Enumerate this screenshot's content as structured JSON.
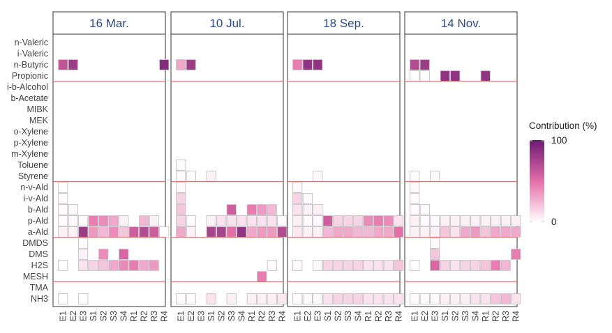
{
  "chart_data": {
    "type": "heatmap",
    "facets": [
      "16 Mar.",
      "10 Jul.",
      "18 Sep.",
      "14 Nov."
    ],
    "x_categories": [
      "E1",
      "E2",
      "E3",
      "S1",
      "S2",
      "S3",
      "S4",
      "R1",
      "R2",
      "R3",
      "R4"
    ],
    "y_categories": [
      "n-Valeric",
      "i-Valeric",
      "n-Butyric",
      "Propionic",
      "i-b-Alcohol",
      "b-Acetate",
      "MIBK",
      "MEK",
      "o-Xylene",
      "p-Xylene",
      "m-Xylene",
      "Toluene",
      "Styrene",
      "n-v-Ald",
      "i-v-Ald",
      "b-Ald",
      "p-Ald",
      "a-Ald",
      "DMDS",
      "DMS",
      "H2S",
      "MESH",
      "TMA",
      "NH3"
    ],
    "y_groups": [
      [
        "n-Valeric",
        "i-Valeric",
        "n-Butyric",
        "Propionic"
      ],
      [
        "i-b-Alcohol",
        "b-Acetate",
        "MIBK",
        "MEK",
        "o-Xylene",
        "p-Xylene",
        "m-Xylene",
        "Toluene",
        "Styrene"
      ],
      [
        "n-v-Ald",
        "i-v-Ald",
        "b-Ald",
        "p-Ald",
        "a-Ald"
      ],
      [
        "DMDS",
        "DMS",
        "H2S",
        "MESH"
      ],
      [
        "TMA",
        "NH3"
      ]
    ],
    "legend": {
      "title": "Contribution (%)",
      "min": 0,
      "max": 100,
      "ticks": [
        0,
        100
      ],
      "low_color": "#ffffff",
      "mid_color": "#e56ea8",
      "high_color": "#6b1a74"
    },
    "colors": {
      "facet_border": "#333333",
      "group_line": "#e07070",
      "cell_border": "#c2c2c2",
      "title_text": "#2a4a8a"
    },
    "values": {
      "16 Mar.": {
        "n-Butyric": {
          "E1": 65,
          "E2": 80,
          "R4": 90
        },
        "n-v-Ald": {
          "E1": 0
        },
        "i-v-Ald": {
          "E1": 2
        },
        "b-Ald": {
          "E1": 2,
          "E2": 2
        },
        "p-Ald": {
          "E1": 2,
          "E2": 2,
          "E3": 2,
          "S1": 45,
          "S2": 40,
          "S3": 30,
          "S4": 5,
          "R2": 25,
          "R3": 5
        },
        "a-Ald": {
          "E1": 5,
          "E2": 5,
          "E3": 80,
          "S1": 35,
          "S2": 25,
          "S3": 40,
          "S4": 20,
          "R1": 60,
          "R2": 70,
          "R3": 60,
          "R4": 0
        },
        "DMDS": {
          "E3": 2
        },
        "DMS": {
          "E3": 5,
          "S2": 40,
          "S4": 55
        },
        "H2S": {
          "E1": 0,
          "E3": 10,
          "S1": 15,
          "S2": 20,
          "S3": 30,
          "S4": 40,
          "R1": 45,
          "R2": 30,
          "R3": 35
        },
        "NH3": {
          "E1": 0,
          "E3": 0
        }
      },
      "10 Jul.": {
        "n-Butyric": {
          "E1": 30,
          "E2": 80
        },
        "Toluene": {
          "E1": 2
        },
        "Styrene": {
          "E1": 2,
          "E2": 2,
          "S1": 5
        },
        "n-v-Ald": {
          "E1": 2
        },
        "i-v-Ald": {
          "E1": 15
        },
        "b-Ald": {
          "E1": 20,
          "S3": 60,
          "R1": 45,
          "R2": 35,
          "R3": 25
        },
        "p-Ald": {
          "E1": 15,
          "E2": 2,
          "S1": 5,
          "S2": 10,
          "S3": 10,
          "S4": 10,
          "R1": 10,
          "R2": 10,
          "R3": 10,
          "R4": 2
        },
        "a-Ald": {
          "E1": 30,
          "E2": 5,
          "S1": 75,
          "S2": 75,
          "S3": 50,
          "S4": 85,
          "R1": 30,
          "R2": 35,
          "R3": 35,
          "R4": 70
        },
        "H2S": {
          "R3": 2
        },
        "MESH": {
          "R2": 45
        },
        "NH3": {
          "E1": 2,
          "E2": 2,
          "S1": 10,
          "S3": 5,
          "R1": 5,
          "R2": 5,
          "R3": 5,
          "R4": 8
        }
      },
      "18 Sep.": {
        "n-Butyric": {
          "E1": 45,
          "E2": 85,
          "E3": 85
        },
        "Styrene": {
          "E3": 2
        },
        "n-v-Ald": {
          "E1": 2
        },
        "i-v-Ald": {
          "E1": 15,
          "E2": 2
        },
        "b-Ald": {
          "E1": 10,
          "E2": 5,
          "E3": 5
        },
        "p-Ald": {
          "E1": 5,
          "E2": 2,
          "E3": 2,
          "S1": 60,
          "S2": 15,
          "S3": 15,
          "S4": 15,
          "R1": 40,
          "R2": 45,
          "R3": 40,
          "R4": 10
        },
        "a-Ald": {
          "E1": 8,
          "E2": 5,
          "E3": 5,
          "S1": 25,
          "S2": 30,
          "S3": 30,
          "S4": 25,
          "R1": 25,
          "R2": 30,
          "R3": 30,
          "R4": 50
        },
        "H2S": {
          "E1": 2,
          "E3": 2,
          "S1": 15,
          "S2": 15,
          "S3": 15,
          "S4": 15,
          "R1": 10,
          "R2": 10,
          "R3": 10,
          "R4": 20
        },
        "NH3": {
          "E1": 2,
          "E2": 2,
          "E3": 2,
          "S1": 10,
          "S2": 15,
          "S3": 15,
          "S4": 15,
          "R1": 10,
          "R2": 10,
          "R3": 10,
          "R4": 10
        }
      },
      "14 Nov.": {
        "n-Butyric": {
          "E1": 70,
          "E2": 80
        },
        "Propionic": {
          "E1": 0,
          "E2": 0,
          "S1": 85,
          "S2": 85,
          "R1": 85
        },
        "Styrene": {
          "E1": 2,
          "E3": 2
        },
        "n-v-Ald": {
          "E1": 2
        },
        "i-v-Ald": {
          "E1": 2
        },
        "b-Ald": {
          "E1": 2,
          "E2": 2
        },
        "p-Ald": {
          "E1": 5,
          "E2": 2,
          "E3": 2,
          "S1": 5,
          "S2": 5,
          "S3": 5,
          "S4": 5,
          "R1": 5,
          "R2": 5,
          "R3": 5,
          "R4": 5
        },
        "a-Ald": {
          "E1": 5,
          "E2": 5,
          "E3": 5,
          "S1": 20,
          "S2": 10,
          "S3": 30,
          "S4": 35,
          "R1": 20,
          "R2": 30,
          "R3": 30,
          "R4": 30
        },
        "DMDS": {
          "E3": 2
        },
        "DMS": {
          "E3": 20,
          "R4": 45
        },
        "H2S": {
          "E1": 0,
          "E3": 55,
          "S1": 15,
          "S2": 10,
          "S3": 15,
          "S4": 15,
          "R1": 20,
          "R2": 45,
          "R3": 25
        },
        "NH3": {
          "E1": 2,
          "E2": 2,
          "E3": 2,
          "S1": 5,
          "S2": 5,
          "S3": 5,
          "S4": 10,
          "R1": 10,
          "R2": 20,
          "R3": 25,
          "R4": 10
        }
      }
    }
  }
}
